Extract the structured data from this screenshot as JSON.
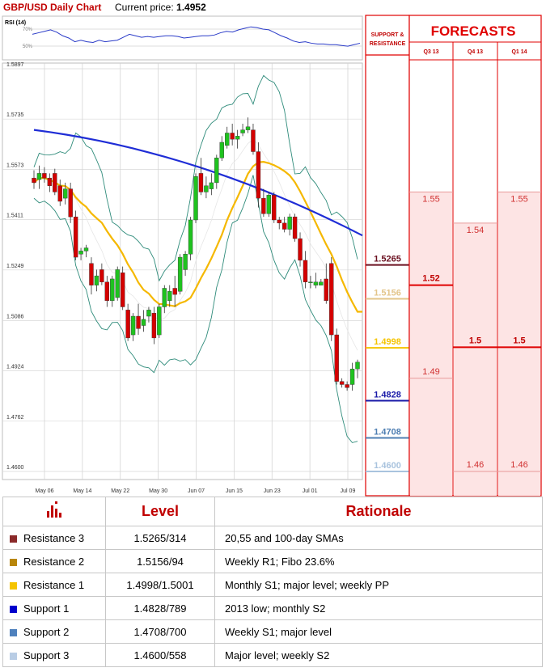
{
  "header": {
    "title": "GBP/USD Daily Chart",
    "price_label": "Current price:",
    "price": "1.4952"
  },
  "rsi": {
    "label": "RSI (14)",
    "levels": [
      "70%",
      "50%"
    ]
  },
  "sr_panel": {
    "title_line1": "SUPPORT &",
    "title_line2": "RESISTANCE"
  },
  "forecast_panel": {
    "title": "FORECASTS",
    "periods": [
      "Q3 13",
      "Q4 13",
      "Q1 14"
    ]
  },
  "colors": {
    "accent": "#c00000",
    "forecast_fill": "#fde4e4",
    "forecast_line": "#e00000"
  },
  "chart_data": [
    {
      "type": "candlestick",
      "title": "GBP/USD Daily Chart",
      "ylim": [
        1.46,
        1.5897
      ],
      "y_ticks": [
        "1.5897",
        "1.5735",
        "1.5573",
        "1.5411",
        "1.5249",
        "1.5086",
        "1.4924",
        "1.4762",
        "1.4600"
      ],
      "x_ticks": [
        "May 06",
        "May 14",
        "May 22",
        "May 30",
        "Jun 07",
        "Jun 15",
        "Jun 23",
        "Jul 01",
        "Jul 09"
      ],
      "candles": [
        [
          1.5545,
          1.557,
          1.551,
          1.553
        ],
        [
          1.554,
          1.5585,
          1.551,
          1.556
        ],
        [
          1.556,
          1.558,
          1.553,
          1.5545
        ],
        [
          1.5545,
          1.556,
          1.55,
          1.552
        ],
        [
          1.556,
          1.5575,
          1.549,
          1.55
        ],
        [
          1.552,
          1.554,
          1.5455,
          1.547
        ],
        [
          1.548,
          1.553,
          1.546,
          1.551
        ],
        [
          1.551,
          1.553,
          1.54,
          1.542
        ],
        [
          1.542,
          1.544,
          1.528,
          1.529
        ],
        [
          1.53,
          1.532,
          1.528,
          1.531
        ],
        [
          1.531,
          1.533,
          1.529,
          1.532
        ],
        [
          1.527,
          1.529,
          1.517,
          1.52
        ],
        [
          1.52,
          1.525,
          1.518,
          1.523
        ],
        [
          1.525,
          1.527,
          1.52,
          1.521
        ],
        [
          1.521,
          1.523,
          1.513,
          1.515
        ],
        [
          1.515,
          1.523,
          1.513,
          1.522
        ],
        [
          1.516,
          1.526,
          1.515,
          1.525
        ],
        [
          1.524,
          1.526,
          1.512,
          1.513
        ],
        [
          1.512,
          1.514,
          1.502,
          1.503
        ],
        [
          1.504,
          1.511,
          1.502,
          1.51
        ],
        [
          1.51,
          1.514,
          1.504,
          1.506
        ],
        [
          1.507,
          1.512,
          1.505,
          1.509
        ],
        [
          1.51,
          1.513,
          1.508,
          1.512
        ],
        [
          1.511,
          1.513,
          1.501,
          1.503
        ],
        [
          1.504,
          1.514,
          1.503,
          1.513
        ],
        [
          1.513,
          1.52,
          1.511,
          1.519
        ],
        [
          1.515,
          1.52,
          1.513,
          1.518
        ],
        [
          1.519,
          1.523,
          1.513,
          1.517
        ],
        [
          1.518,
          1.53,
          1.517,
          1.529
        ],
        [
          1.525,
          1.531,
          1.523,
          1.53
        ],
        [
          1.53,
          1.542,
          1.528,
          1.541
        ],
        [
          1.541,
          1.556,
          1.54,
          1.555
        ],
        [
          1.556,
          1.561,
          1.549,
          1.55
        ],
        [
          1.55,
          1.555,
          1.548,
          1.552
        ],
        [
          1.551,
          1.556,
          1.549,
          1.553
        ],
        [
          1.553,
          1.562,
          1.551,
          1.561
        ],
        [
          1.561,
          1.568,
          1.56,
          1.566
        ],
        [
          1.565,
          1.571,
          1.564,
          1.569
        ],
        [
          1.569,
          1.572,
          1.565,
          1.567
        ],
        [
          1.567,
          1.57,
          1.564,
          1.568
        ],
        [
          1.569,
          1.572,
          1.568,
          1.57
        ],
        [
          1.57,
          1.574,
          1.569,
          1.571
        ],
        [
          1.57,
          1.572,
          1.562,
          1.563
        ],
        [
          1.563,
          1.566,
          1.545,
          1.548
        ],
        [
          1.548,
          1.551,
          1.542,
          1.543
        ],
        [
          1.543,
          1.55,
          1.542,
          1.549
        ],
        [
          1.549,
          1.55,
          1.54,
          1.541
        ],
        [
          1.541,
          1.542,
          1.538,
          1.54
        ],
        [
          1.54,
          1.542,
          1.537,
          1.538
        ],
        [
          1.538,
          1.543,
          1.536,
          1.542
        ],
        [
          1.542,
          1.543,
          1.534,
          1.535
        ],
        [
          1.535,
          1.537,
          1.526,
          1.528
        ],
        [
          1.528,
          1.531,
          1.519,
          1.521
        ],
        [
          1.521,
          1.523,
          1.519,
          1.521
        ],
        [
          1.52,
          1.524,
          1.519,
          1.521
        ],
        [
          1.52,
          1.522,
          1.52,
          1.521
        ],
        [
          1.522,
          1.527,
          1.514,
          1.515
        ],
        [
          1.527,
          1.529,
          1.502,
          1.504
        ],
        [
          1.504,
          1.506,
          1.488,
          1.489
        ],
        [
          1.489,
          1.49,
          1.487,
          1.488
        ],
        [
          1.488,
          1.489,
          1.486,
          1.487
        ],
        [
          1.488,
          1.495,
          1.486,
          1.493
        ],
        [
          1.493,
          1.496,
          1.49,
          1.4952
        ]
      ],
      "indicators": {
        "sma_100": {
          "name": "100-day SMA",
          "color": "#1f2dd6",
          "start": 1.57,
          "end": 1.536
        },
        "sma_55": {
          "name": "55-day SMA",
          "color": "#f5b800"
        },
        "bollinger": {
          "color": "#2e8b7a"
        }
      }
    },
    {
      "type": "line",
      "title": "RSI (14)",
      "ylim": [
        30,
        80
      ],
      "values": [
        60,
        62,
        64,
        66,
        63,
        58,
        55,
        50,
        52,
        50,
        49,
        52,
        50,
        51,
        52,
        56,
        60,
        58,
        56,
        57,
        56,
        57,
        58,
        58,
        57,
        55,
        56,
        57,
        58,
        58,
        59,
        62,
        64,
        63,
        66,
        68,
        70,
        69,
        67,
        66,
        62,
        58,
        55,
        51,
        49,
        50,
        48,
        47,
        47,
        46,
        46,
        45,
        44,
        46,
        48
      ]
    }
  ],
  "support_resistance": [
    {
      "level": "1.5265",
      "value": 1.5265,
      "color": "#6b1020"
    },
    {
      "level": "1.5156",
      "value": 1.5156,
      "color": "#e3c58a"
    },
    {
      "level": "1.4998",
      "value": 1.4998,
      "color": "#f5c400"
    },
    {
      "level": "1.4828",
      "value": 1.4828,
      "color": "#1a1aa8"
    },
    {
      "level": "1.4708",
      "value": 1.4708,
      "color": "#4f7fb3"
    },
    {
      "level": "1.4600",
      "value": 1.46,
      "color": "#a9c3de"
    }
  ],
  "forecasts": [
    {
      "period": "Q3 13",
      "high": "1.55",
      "high_val": 1.55,
      "mid": "1.52",
      "mid_val": 1.52,
      "low": "1.49",
      "low_val": 1.49
    },
    {
      "period": "Q4 13",
      "high": "1.54",
      "high_val": 1.54,
      "mid": "1.5",
      "mid_val": 1.5,
      "low": "1.46",
      "low_val": 1.46
    },
    {
      "period": "Q1 14",
      "high": "1.55",
      "high_val": 1.55,
      "mid": "1.5",
      "mid_val": 1.5,
      "low": "1.46",
      "low_val": 1.46
    }
  ],
  "table": {
    "headers": {
      "level": "Level",
      "rationale": "Rationale"
    },
    "rows": [
      {
        "name": "Resistance 3",
        "level": "1.5265/314",
        "rationale": "20,55 and 100-day SMAs",
        "color": "#8b2a2a"
      },
      {
        "name": "Resistance 2",
        "level": "1.5156/94",
        "rationale": "Weekly R1; Fibo 23.6%",
        "color": "#b8860b"
      },
      {
        "name": "Resistance 1",
        "level": "1.4998/1.5001",
        "rationale": "Monthly S1;  major level; weekly PP",
        "color": "#f5c400"
      },
      {
        "name": "Support 1",
        "level": "1.4828/789",
        "rationale": "2013 low; monthly S2",
        "color": "#0000cc"
      },
      {
        "name": "Support 2",
        "level": "1.4708/700",
        "rationale": "Weekly S1; major level",
        "color": "#4f81bd"
      },
      {
        "name": "Support 3",
        "level": "1.4600/558",
        "rationale": "Major level; weekly S2",
        "color": "#b9cde5"
      }
    ]
  }
}
